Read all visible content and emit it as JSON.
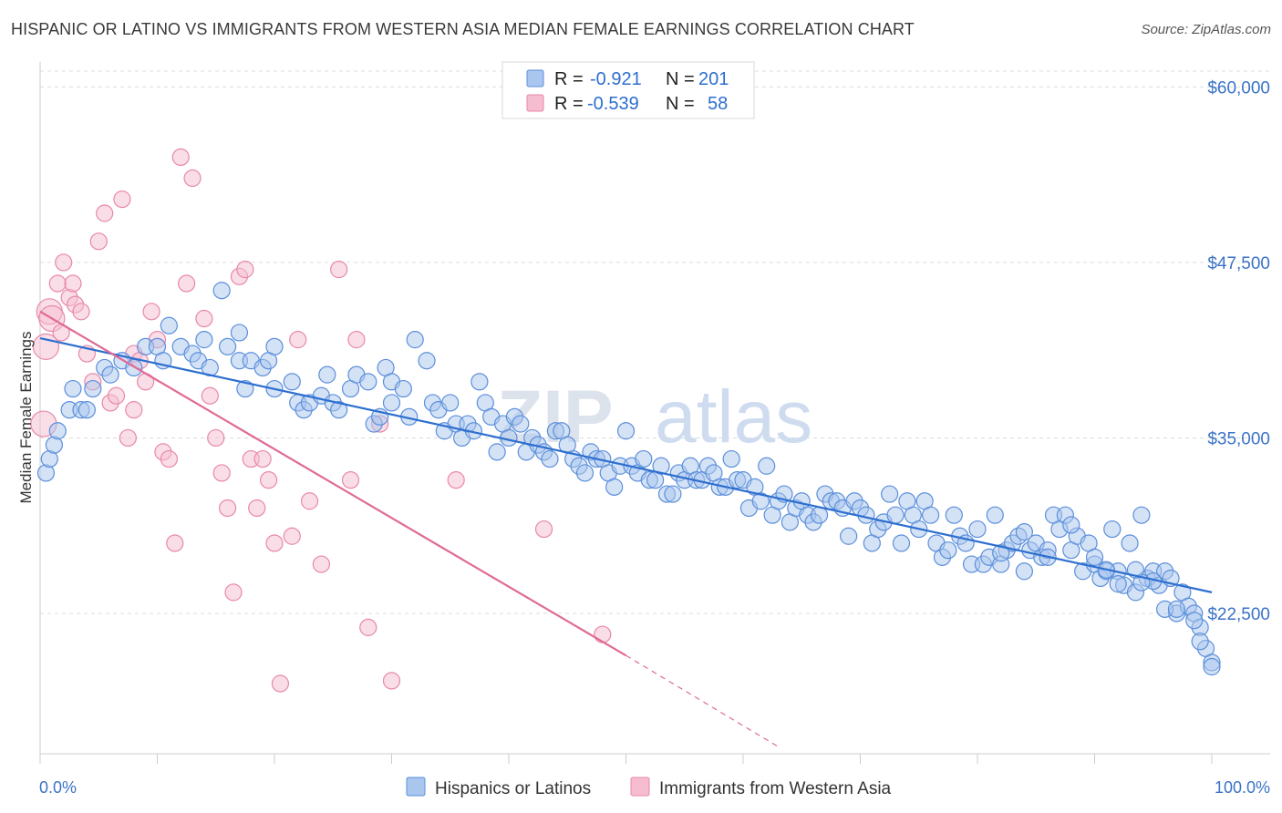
{
  "chart_data": {
    "type": "scatter",
    "title": "HISPANIC OR LATINO VS IMMIGRANTS FROM WESTERN ASIA MEDIAN FEMALE EARNINGS CORRELATION CHART",
    "source": "Source: ZipAtlas.com",
    "ylabel": "Median Female Earnings",
    "xlabel": "",
    "x_tick_labels": [
      "0.0%",
      "100.0%"
    ],
    "y_ticks": [
      22500,
      35000,
      47500,
      60000
    ],
    "y_tick_labels": [
      "$22,500",
      "$35,000",
      "$47,500",
      "$60,000"
    ],
    "xlim": [
      0,
      100
    ],
    "ylim": [
      12500,
      61000
    ],
    "grid": true,
    "legend_position": "top-center",
    "watermark": "ZIPatlas",
    "colors": {
      "blue_fill": "#a9c6ee",
      "blue_stroke": "#5b8fdb",
      "blue_line": "#2d6fcf",
      "pink_fill": "#f6bdd0",
      "pink_stroke": "#e888a8",
      "pink_line": "#e06a96",
      "tick_label": "#3b73c8",
      "grid": "#dcdcdc"
    },
    "legend": [
      {
        "series": "Hispanics or Latinos",
        "r_label": "R =",
        "r_value": "-0.921",
        "n_label": "N =",
        "n_value": "201"
      },
      {
        "series": "Immigrants from Western Asia",
        "r_label": "R =",
        "r_value": "-0.539",
        "n_label": "N =",
        "n_value": "58"
      }
    ],
    "series": [
      {
        "name": "Hispanics or Latinos",
        "trendline": {
          "x": [
            0,
            100
          ],
          "y": [
            42100,
            24000
          ]
        },
        "points": [
          [
            0.5,
            32500
          ],
          [
            0.8,
            33500
          ],
          [
            1.2,
            34500
          ],
          [
            1.5,
            35500
          ],
          [
            2.5,
            37000
          ],
          [
            2.8,
            38500
          ],
          [
            3.5,
            37000
          ],
          [
            4.0,
            37000
          ],
          [
            4.5,
            38500
          ],
          [
            5.5,
            40000
          ],
          [
            6.0,
            39500
          ],
          [
            7.0,
            40500
          ],
          [
            8.0,
            40000
          ],
          [
            9.0,
            41500
          ],
          [
            10.0,
            41500
          ],
          [
            10.5,
            40500
          ],
          [
            11.0,
            43000
          ],
          [
            12.0,
            41500
          ],
          [
            13.0,
            41000
          ],
          [
            13.5,
            40500
          ],
          [
            14.0,
            42000
          ],
          [
            14.5,
            40000
          ],
          [
            15.5,
            45500
          ],
          [
            16.0,
            41500
          ],
          [
            17.0,
            42500
          ],
          [
            17.0,
            40500
          ],
          [
            18.0,
            40500
          ],
          [
            19.0,
            40000
          ],
          [
            19.5,
            40500
          ],
          [
            20.0,
            41500
          ],
          [
            17.5,
            38500
          ],
          [
            20.0,
            38500
          ],
          [
            21.5,
            39000
          ],
          [
            22.0,
            37500
          ],
          [
            22.5,
            37000
          ],
          [
            23.0,
            37500
          ],
          [
            24.0,
            38000
          ],
          [
            24.5,
            39500
          ],
          [
            25.0,
            37500
          ],
          [
            25.5,
            37000
          ],
          [
            26.5,
            38500
          ],
          [
            27.0,
            39500
          ],
          [
            28.0,
            39000
          ],
          [
            28.5,
            36000
          ],
          [
            29.0,
            36500
          ],
          [
            29.5,
            40000
          ],
          [
            30.0,
            39000
          ],
          [
            30.0,
            37500
          ],
          [
            31.0,
            38500
          ],
          [
            31.5,
            36500
          ],
          [
            32.0,
            42000
          ],
          [
            33.0,
            40500
          ],
          [
            33.5,
            37500
          ],
          [
            34.0,
            37000
          ],
          [
            34.5,
            35500
          ],
          [
            35.0,
            37500
          ],
          [
            35.5,
            36000
          ],
          [
            36.0,
            35000
          ],
          [
            36.5,
            36000
          ],
          [
            37.0,
            35500
          ],
          [
            37.5,
            39000
          ],
          [
            38.0,
            37500
          ],
          [
            38.5,
            36500
          ],
          [
            39.0,
            34000
          ],
          [
            39.5,
            36000
          ],
          [
            40.0,
            35000
          ],
          [
            40.5,
            36500
          ],
          [
            41.0,
            36000
          ],
          [
            41.5,
            34000
          ],
          [
            42.0,
            35000
          ],
          [
            42.5,
            34500
          ],
          [
            43.0,
            34000
          ],
          [
            43.5,
            33500
          ],
          [
            44.0,
            35500
          ],
          [
            44.5,
            35500
          ],
          [
            45.0,
            34500
          ],
          [
            45.5,
            33500
          ],
          [
            46.0,
            33000
          ],
          [
            46.5,
            32500
          ],
          [
            47.0,
            34000
          ],
          [
            47.5,
            33500
          ],
          [
            48.0,
            33500
          ],
          [
            48.5,
            32500
          ],
          [
            49.0,
            31500
          ],
          [
            49.5,
            33000
          ],
          [
            50.0,
            35500
          ],
          [
            50.5,
            33000
          ],
          [
            51.0,
            32500
          ],
          [
            51.5,
            33500
          ],
          [
            52.0,
            32000
          ],
          [
            52.5,
            32000
          ],
          [
            53.0,
            33000
          ],
          [
            53.5,
            31000
          ],
          [
            54.0,
            31000
          ],
          [
            54.5,
            32500
          ],
          [
            55.0,
            32000
          ],
          [
            55.5,
            33000
          ],
          [
            56.0,
            32000
          ],
          [
            56.5,
            32000
          ],
          [
            57.0,
            33000
          ],
          [
            57.5,
            32500
          ],
          [
            58.0,
            31500
          ],
          [
            58.5,
            31500
          ],
          [
            59.0,
            33500
          ],
          [
            59.5,
            32000
          ],
          [
            60.0,
            32000
          ],
          [
            60.5,
            30000
          ],
          [
            61.0,
            31500
          ],
          [
            61.5,
            30500
          ],
          [
            62.0,
            33000
          ],
          [
            62.5,
            29500
          ],
          [
            63.0,
            30500
          ],
          [
            63.5,
            31000
          ],
          [
            64.0,
            29000
          ],
          [
            64.5,
            30000
          ],
          [
            65.0,
            30500
          ],
          [
            65.5,
            29500
          ],
          [
            66.0,
            29000
          ],
          [
            66.5,
            29500
          ],
          [
            67.0,
            31000
          ],
          [
            67.5,
            30500
          ],
          [
            68.0,
            30500
          ],
          [
            68.5,
            30000
          ],
          [
            69.0,
            28000
          ],
          [
            69.5,
            30500
          ],
          [
            70.0,
            30000
          ],
          [
            70.5,
            29500
          ],
          [
            71.0,
            27500
          ],
          [
            71.5,
            28500
          ],
          [
            72.0,
            29000
          ],
          [
            72.5,
            31000
          ],
          [
            73.0,
            29500
          ],
          [
            73.5,
            27500
          ],
          [
            74.0,
            30500
          ],
          [
            74.5,
            29500
          ],
          [
            75.0,
            28500
          ],
          [
            75.5,
            30500
          ],
          [
            76.0,
            29500
          ],
          [
            76.5,
            27500
          ],
          [
            77.0,
            26500
          ],
          [
            77.5,
            27000
          ],
          [
            78.0,
            29500
          ],
          [
            78.5,
            28000
          ],
          [
            79.0,
            27500
          ],
          [
            79.5,
            26000
          ],
          [
            80.0,
            28500
          ],
          [
            80.5,
            26000
          ],
          [
            81.0,
            26500
          ],
          [
            81.5,
            29500
          ],
          [
            82.0,
            26000
          ],
          [
            82.5,
            27000
          ],
          [
            83.0,
            27500
          ],
          [
            83.5,
            28000
          ],
          [
            84.0,
            25500
          ],
          [
            84.5,
            27000
          ],
          [
            85.0,
            27500
          ],
          [
            85.5,
            26500
          ],
          [
            86.0,
            27000
          ],
          [
            86.5,
            29500
          ],
          [
            87.0,
            28500
          ],
          [
            87.5,
            29500
          ],
          [
            88.0,
            27000
          ],
          [
            88.5,
            28000
          ],
          [
            89.0,
            25500
          ],
          [
            89.5,
            27500
          ],
          [
            90.0,
            26000
          ],
          [
            90.5,
            25000
          ],
          [
            91.0,
            25500
          ],
          [
            91.5,
            28500
          ],
          [
            92.0,
            25500
          ],
          [
            92.5,
            24500
          ],
          [
            93.0,
            27500
          ],
          [
            93.5,
            24000
          ],
          [
            94.0,
            29500
          ],
          [
            94.5,
            25000
          ],
          [
            95.0,
            25500
          ],
          [
            95.5,
            24500
          ],
          [
            96.0,
            25500
          ],
          [
            96.5,
            25000
          ],
          [
            97.0,
            22500
          ],
          [
            97.5,
            24000
          ],
          [
            98.0,
            23000
          ],
          [
            98.5,
            22500
          ],
          [
            99.0,
            21500
          ],
          [
            99.5,
            20000
          ],
          [
            100.0,
            19000
          ],
          [
            98.5,
            22000
          ],
          [
            99.0,
            20500
          ],
          [
            100.0,
            18700
          ],
          [
            96.0,
            22800
          ],
          [
            97.0,
            22800
          ],
          [
            95.0,
            24800
          ],
          [
            94.0,
            24700
          ],
          [
            93.5,
            25600
          ],
          [
            92.0,
            24600
          ],
          [
            91.0,
            25600
          ],
          [
            90.0,
            26500
          ],
          [
            88.0,
            28800
          ],
          [
            86.0,
            26500
          ],
          [
            84.0,
            28300
          ],
          [
            82.0,
            26800
          ]
        ]
      },
      {
        "name": "Immigrants from Western Asia",
        "trendline": {
          "x": [
            0,
            50
          ],
          "y": [
            44000,
            19500
          ]
        },
        "trendline_dashed": {
          "x": [
            50,
            63
          ],
          "y": [
            19500,
            13000
          ]
        },
        "points": [
          [
            0.3,
            36000
          ],
          [
            0.5,
            41500
          ],
          [
            0.8,
            44000
          ],
          [
            1.0,
            43500
          ],
          [
            1.5,
            46000
          ],
          [
            1.8,
            42500
          ],
          [
            2.0,
            47500
          ],
          [
            2.5,
            45000
          ],
          [
            2.8,
            46000
          ],
          [
            3.0,
            44500
          ],
          [
            3.5,
            44000
          ],
          [
            4.0,
            41000
          ],
          [
            4.5,
            39000
          ],
          [
            5.0,
            49000
          ],
          [
            5.5,
            51000
          ],
          [
            6.0,
            37500
          ],
          [
            6.5,
            38000
          ],
          [
            7.0,
            52000
          ],
          [
            7.5,
            35000
          ],
          [
            8.0,
            37000
          ],
          [
            8.0,
            41000
          ],
          [
            8.5,
            40500
          ],
          [
            9.0,
            39000
          ],
          [
            9.5,
            44000
          ],
          [
            10.0,
            42000
          ],
          [
            10.5,
            34000
          ],
          [
            11.0,
            33500
          ],
          [
            11.5,
            27500
          ],
          [
            12.0,
            55000
          ],
          [
            12.5,
            46000
          ],
          [
            13.0,
            53500
          ],
          [
            14.0,
            43500
          ],
          [
            14.5,
            38000
          ],
          [
            15.0,
            35000
          ],
          [
            15.5,
            32500
          ],
          [
            16.0,
            30000
          ],
          [
            16.5,
            24000
          ],
          [
            17.0,
            46500
          ],
          [
            17.5,
            47000
          ],
          [
            18.0,
            33500
          ],
          [
            18.5,
            30000
          ],
          [
            19.0,
            33500
          ],
          [
            19.5,
            32000
          ],
          [
            20.0,
            27500
          ],
          [
            20.5,
            17500
          ],
          [
            21.5,
            28000
          ],
          [
            22.0,
            42000
          ],
          [
            23.0,
            30500
          ],
          [
            24.0,
            26000
          ],
          [
            25.5,
            47000
          ],
          [
            26.5,
            32000
          ],
          [
            27.0,
            42000
          ],
          [
            28.0,
            21500
          ],
          [
            29.0,
            36000
          ],
          [
            30.0,
            17700
          ],
          [
            35.5,
            32000
          ],
          [
            43.0,
            28500
          ],
          [
            48.0,
            21000
          ]
        ]
      }
    ]
  }
}
